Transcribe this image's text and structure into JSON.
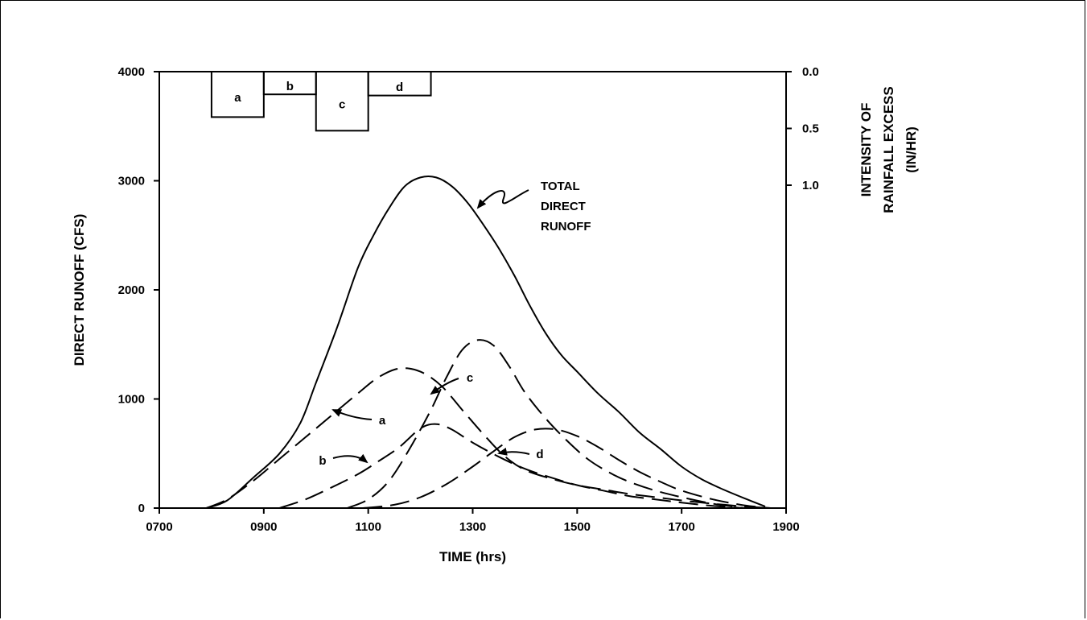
{
  "chart_data": {
    "type": "line",
    "x_axis": {
      "label": "TIME  (hrs)",
      "range": [
        700,
        1900
      ],
      "ticks": [
        "0700",
        "0900",
        "1100",
        "1300",
        "1500",
        "1700",
        "1900"
      ],
      "tick_values": [
        700,
        900,
        1100,
        1300,
        1500,
        1700,
        1900
      ]
    },
    "y_axis": {
      "label": "DIRECT RUNOFF  (CFS)",
      "range": [
        0,
        4000
      ],
      "ticks": [
        "0",
        "1000",
        "2000",
        "3000",
        "4000"
      ],
      "tick_values": [
        0,
        1000,
        2000,
        3000,
        4000
      ]
    },
    "y2_axis": {
      "label_lines": [
        "INTENSITY OF",
        "RAINFALL EXCESS",
        "(IN/HR)"
      ],
      "range": [
        0.0,
        1.0
      ],
      "inverted": true,
      "ticks": [
        "0.0",
        "0.5",
        "1.0"
      ],
      "tick_values": [
        0.0,
        0.5,
        1.0
      ]
    },
    "rainfall_excess_blocks": [
      {
        "label": "a",
        "start": 800,
        "end": 900,
        "intensity": 0.4
      },
      {
        "label": "b",
        "start": 900,
        "end": 1000,
        "intensity": 0.2
      },
      {
        "label": "c",
        "start": 1000,
        "end": 1100,
        "intensity": 0.52
      },
      {
        "label": "d",
        "start": 1100,
        "end": 1220,
        "intensity": 0.21
      }
    ],
    "series": [
      {
        "name": "TOTAL DIRECT RUNOFF",
        "style": "solid",
        "x": [
          790,
          830,
          880,
          930,
          970,
          1000,
          1040,
          1080,
          1110,
          1140,
          1170,
          1200,
          1230,
          1260,
          1290,
          1320,
          1350,
          1380,
          1410,
          1440,
          1470,
          1500,
          1540,
          1580,
          1620,
          1660,
          1700,
          1740,
          1780,
          1820,
          1860
        ],
        "y": [
          0,
          70,
          280,
          500,
          780,
          1150,
          1650,
          2200,
          2500,
          2750,
          2950,
          3030,
          3030,
          2950,
          2800,
          2600,
          2380,
          2130,
          1850,
          1600,
          1400,
          1250,
          1050,
          880,
          690,
          540,
          380,
          260,
          170,
          90,
          15
        ]
      },
      {
        "name": "a",
        "style": "dashed",
        "x": [
          790,
          830,
          880,
          930,
          980,
          1030,
          1080,
          1120,
          1160,
          1200,
          1240,
          1280,
          1320,
          1360,
          1400,
          1450,
          1500,
          1550,
          1600,
          1650,
          1700,
          1760,
          1820,
          1870
        ],
        "y": [
          0,
          80,
          250,
          450,
          650,
          850,
          1050,
          1200,
          1280,
          1250,
          1120,
          900,
          680,
          480,
          350,
          270,
          210,
          170,
          130,
          100,
          70,
          40,
          15,
          0
        ]
      },
      {
        "name": "b",
        "style": "dashed",
        "x": [
          930,
          980,
          1030,
          1080,
          1120,
          1160,
          1200,
          1230,
          1260,
          1300,
          1350,
          1400,
          1450,
          1500,
          1550,
          1600,
          1650,
          1700,
          1760,
          1820
        ],
        "y": [
          0,
          80,
          190,
          310,
          430,
          560,
          730,
          770,
          720,
          600,
          470,
          360,
          280,
          210,
          160,
          110,
          80,
          50,
          20,
          0
        ]
      },
      {
        "name": "c",
        "style": "dashed",
        "x": [
          1060,
          1100,
          1140,
          1180,
          1220,
          1250,
          1280,
          1310,
          1340,
          1370,
          1400,
          1440,
          1480,
          1520,
          1560,
          1600,
          1650,
          1700,
          1760,
          1820
        ],
        "y": [
          0,
          80,
          250,
          550,
          900,
          1200,
          1450,
          1540,
          1490,
          1300,
          1060,
          820,
          620,
          450,
          330,
          240,
          160,
          100,
          40,
          0
        ]
      },
      {
        "name": "d",
        "style": "dashed",
        "x": [
          1090,
          1150,
          1200,
          1250,
          1300,
          1340,
          1380,
          1420,
          1460,
          1500,
          1540,
          1580,
          1620,
          1660,
          1700,
          1760,
          1820,
          1870
        ],
        "y": [
          0,
          30,
          100,
          220,
          380,
          520,
          650,
          720,
          720,
          660,
          560,
          440,
          330,
          240,
          160,
          80,
          25,
          0
        ]
      }
    ],
    "annotations": [
      {
        "text": "TOTAL",
        "line": 1
      },
      {
        "text": "DIRECT",
        "line": 2
      },
      {
        "text": "RUNOFF",
        "line": 3
      },
      {
        "text": "a"
      },
      {
        "text": "b"
      },
      {
        "text": "c"
      },
      {
        "text": "d"
      }
    ],
    "grid": false,
    "legend": "none"
  }
}
